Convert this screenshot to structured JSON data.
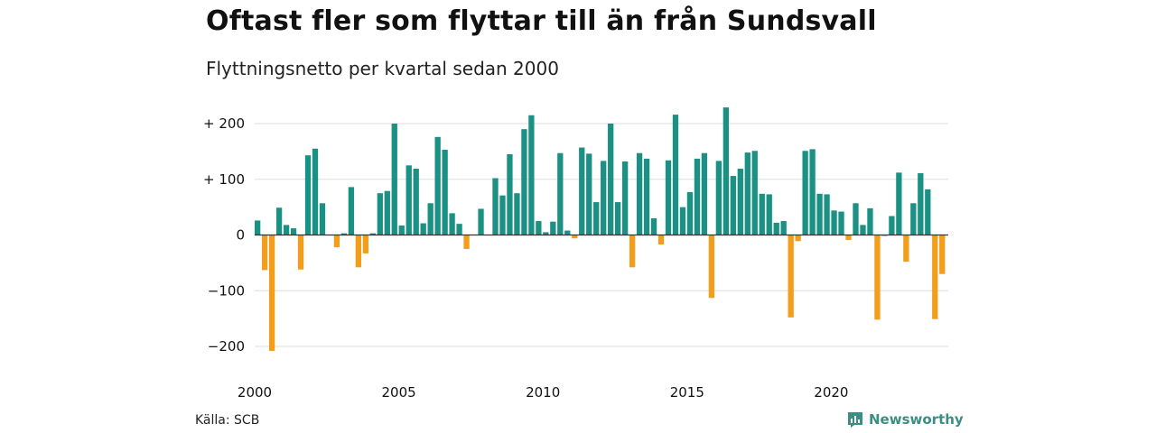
{
  "title": "Oftast fler som flyttar till än från Sundsvall",
  "subtitle": "Flyttningsnetto per kvartal sedan 2000",
  "source": "Källa: SCB",
  "brand": "Newsworthy",
  "colors": {
    "positive": "#1a9182",
    "negative": "#f29d1c",
    "grid": "#dddddd",
    "zero_line": "#333333",
    "brand": "#3a8e83"
  },
  "brand_icon": "newsworthy-chart-icon",
  "chart_data": {
    "type": "bar",
    "title": "Oftast fler som flyttar till än från Sundsvall",
    "subtitle": "Flyttningsnetto per kvartal sedan 2000",
    "xlabel": "",
    "ylabel": "",
    "ylim": [
      -220,
      235
    ],
    "grid": true,
    "y_ticks": [
      {
        "value": 200,
        "label": "+ 200"
      },
      {
        "value": 100,
        "label": "+ 100"
      },
      {
        "value": 0,
        "label": "0"
      },
      {
        "value": -100,
        "label": "−100"
      },
      {
        "value": -200,
        "label": "−200"
      }
    ],
    "x_ticks": [
      {
        "value": 2000,
        "label": "2000"
      },
      {
        "value": 2005,
        "label": "2005"
      },
      {
        "value": 2010,
        "label": "2010"
      },
      {
        "value": 2015,
        "label": "2015"
      },
      {
        "value": 2020,
        "label": "2020"
      }
    ],
    "start_year": 2000,
    "periods_per_year": 4,
    "values": [
      26,
      -63,
      -208,
      49,
      18,
      12,
      -62,
      143,
      155,
      57,
      0,
      -22,
      3,
      86,
      -58,
      -33,
      3,
      75,
      79,
      200,
      17,
      125,
      119,
      21,
      57,
      176,
      153,
      39,
      20,
      -25,
      0,
      47,
      0,
      102,
      71,
      145,
      75,
      190,
      215,
      25,
      5,
      24,
      147,
      8,
      -6,
      157,
      146,
      59,
      133,
      200,
      59,
      132,
      -58,
      147,
      137,
      30,
      -17,
      134,
      216,
      50,
      77,
      137,
      147,
      -113,
      133,
      229,
      106,
      119,
      148,
      151,
      74,
      73,
      22,
      25,
      -148,
      -11,
      151,
      154,
      74,
      73,
      44,
      42,
      -9,
      57,
      18,
      48,
      -152,
      -2,
      34,
      112,
      -48,
      57,
      111,
      82,
      -151,
      -70
    ]
  }
}
